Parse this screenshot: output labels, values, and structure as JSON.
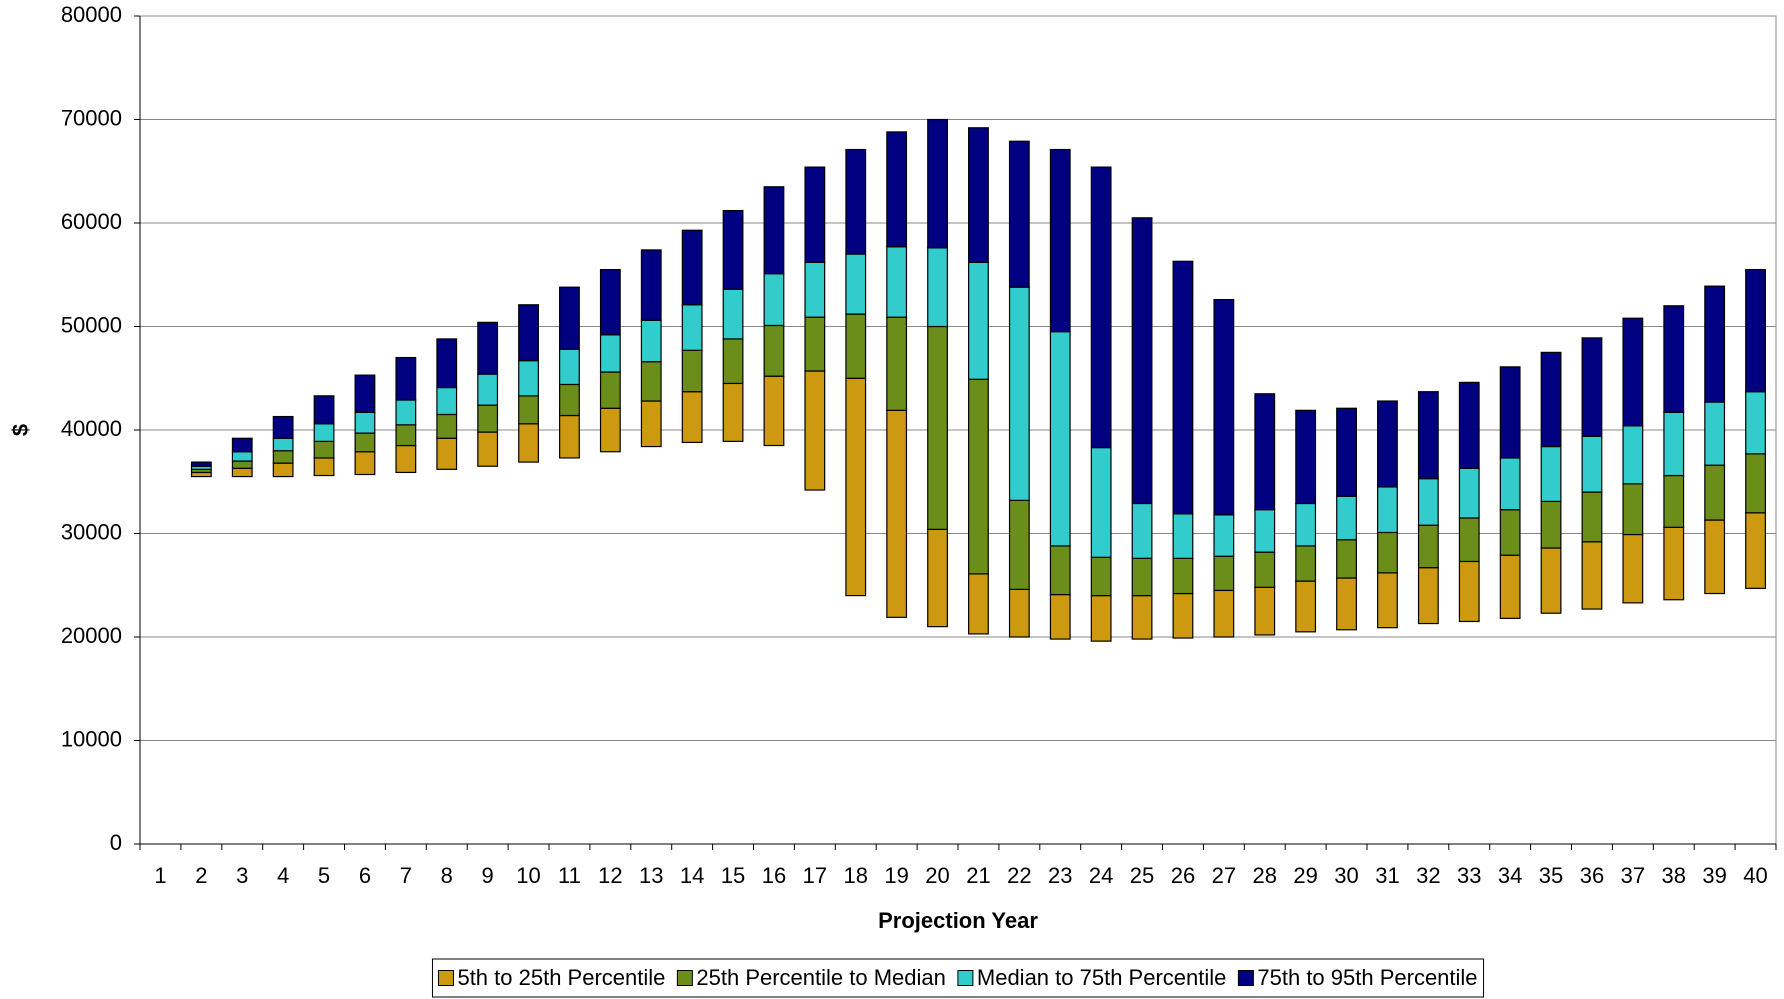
{
  "chart_data": {
    "type": "floating_stacked_bar",
    "x_label": "Projection Year",
    "y_label": "$",
    "categories": [
      "1",
      "2",
      "3",
      "4",
      "5",
      "6",
      "7",
      "8",
      "9",
      "10",
      "11",
      "12",
      "13",
      "14",
      "15",
      "16",
      "17",
      "18",
      "19",
      "20",
      "21",
      "22",
      "23",
      "24",
      "25",
      "26",
      "27",
      "28",
      "29",
      "30",
      "31",
      "32",
      "33",
      "34",
      "35",
      "36",
      "37",
      "38",
      "39",
      "40"
    ],
    "bases": [
      null,
      35500,
      35500,
      35500,
      35600,
      35700,
      35900,
      36200,
      36500,
      36900,
      37300,
      37900,
      38400,
      38800,
      38900,
      38500,
      34200,
      24000,
      21900,
      21000,
      20300,
      20000,
      19800,
      19600,
      19800,
      19900,
      20000,
      20200,
      20500,
      20700,
      20900,
      21300,
      21500,
      21800,
      22300,
      22700,
      23300,
      23600,
      24200,
      24700
    ],
    "series": [
      {
        "name": "5th to 25th Percentile",
        "color": "#CC9910",
        "values": [
          null,
          400,
          800,
          1300,
          1700,
          2200,
          2600,
          3000,
          3300,
          3700,
          4100,
          4200,
          4400,
          4900,
          5600,
          6700,
          11500,
          21000,
          20000,
          9400,
          5800,
          4600,
          4300,
          4400,
          4200,
          4300,
          4500,
          4600,
          4900,
          5000,
          5300,
          5400,
          5800,
          6100,
          6300,
          6500,
          6600,
          7000,
          7100,
          7300
        ]
      },
      {
        "name": "25th Percentile to Median",
        "color": "#6B8E1A",
        "values": [
          null,
          300,
          700,
          1200,
          1600,
          1800,
          2000,
          2300,
          2600,
          2700,
          3000,
          3500,
          3800,
          4000,
          4300,
          4900,
          5200,
          6200,
          9000,
          19600,
          18800,
          8600,
          4700,
          3700,
          3600,
          3400,
          3300,
          3400,
          3400,
          3700,
          3900,
          4100,
          4200,
          4400,
          4500,
          4800,
          4900,
          5000,
          5300,
          5700
        ]
      },
      {
        "name": "Median to 75th Percentile",
        "color": "#33CCCC",
        "values": [
          null,
          300,
          900,
          1200,
          1700,
          2000,
          2400,
          2600,
          3000,
          3400,
          3400,
          3600,
          4000,
          4400,
          4800,
          5000,
          5300,
          5800,
          6800,
          7600,
          11300,
          20600,
          20700,
          10600,
          5300,
          4300,
          4000,
          4100,
          4100,
          4200,
          4400,
          4500,
          4800,
          5000,
          5300,
          5400,
          5600,
          6100,
          6100,
          6000
        ]
      },
      {
        "name": "75th to 95th Percentile",
        "color": "#000080",
        "values": [
          null,
          400,
          1300,
          2100,
          2700,
          3600,
          4100,
          4700,
          5000,
          5400,
          6000,
          6300,
          6800,
          7200,
          7600,
          8400,
          9200,
          10100,
          11100,
          12400,
          13000,
          14100,
          17600,
          27100,
          27600,
          24400,
          20800,
          11200,
          9000,
          8500,
          8300,
          8400,
          8300,
          8800,
          9100,
          9500,
          10400,
          10300,
          11200,
          11800
        ]
      }
    ],
    "ylim": [
      0,
      80000
    ],
    "yticks": [
      0,
      10000,
      20000,
      30000,
      40000,
      50000,
      60000,
      70000,
      80000
    ],
    "grid": true,
    "legend": "bottom"
  }
}
